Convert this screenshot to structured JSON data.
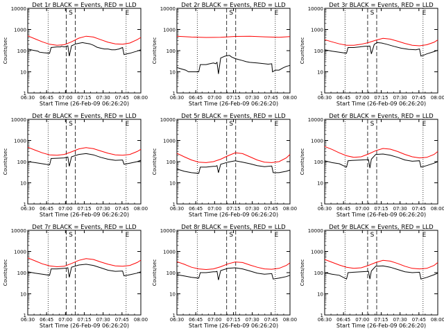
{
  "chart_data": [
    {
      "type": "line",
      "title": "Det 1r BLACK = Events, RED = LLD",
      "xlabel": "Start Time (26-Feb-09 06:26:20)",
      "ylabel": "Counts/sec",
      "yscale": "log",
      "ylim": [
        1,
        10000
      ],
      "xticks": [
        "06:30",
        "06:45",
        "07:00",
        "07:15",
        "07:30",
        "07:45",
        "08:00"
      ],
      "yticks": [
        "1",
        "10",
        "100",
        "1000",
        "10000"
      ],
      "markers": [
        "S",
        "E"
      ],
      "series": [
        {
          "color": "#000000",
          "x": [
            0,
            7,
            14,
            16,
            22,
            30,
            32,
            40,
            45,
            46,
            50,
            53,
            55,
            57,
            60,
            66,
            72,
            75,
            78,
            85,
            90,
            94,
            95,
            100,
            105,
            110,
            115,
            120,
            125,
            130,
            132,
            135,
            140,
            145,
            150,
            155
          ],
          "y": [
            120,
            105,
            95,
            85,
            80,
            75,
            140,
            150,
            150,
            160,
            150,
            160,
            170,
            55,
            170,
            210,
            230,
            240,
            230,
            210,
            180,
            150,
            145,
            130,
            120,
            120,
            110,
            110,
            120,
            140,
            65,
            70,
            75,
            85,
            95,
            110
          ]
        },
        {
          "color": "#ff0000",
          "x": [
            0,
            10,
            20,
            30,
            40,
            50,
            60,
            70,
            80,
            90,
            100,
            110,
            120,
            130,
            140,
            150,
            155
          ],
          "y": [
            500,
            360,
            260,
            200,
            180,
            190,
            260,
            390,
            480,
            440,
            330,
            250,
            210,
            200,
            230,
            330,
            420
          ]
        }
      ]
    },
    {
      "type": "line",
      "title": "Det 2r BLACK = Events, RED = LLD",
      "xlabel": "Start Time (26-Feb-09 06:26:20)",
      "ylabel": "Counts/sec",
      "yscale": "log",
      "ylim": [
        1,
        10000
      ],
      "xticks": [
        "06:30",
        "06:45",
        "07:00",
        "07:15",
        "07:30",
        "07:45",
        "08:00"
      ],
      "yticks": [
        "1",
        "10",
        "100",
        "1000",
        "10000"
      ],
      "markers": [
        "S",
        "E"
      ],
      "series": [
        {
          "color": "#000000",
          "x": [
            0,
            5,
            12,
            16,
            22,
            30,
            32,
            40,
            45,
            50,
            52,
            53,
            55,
            57,
            60,
            66,
            72,
            75,
            80,
            90,
            95,
            100,
            110,
            120,
            125,
            130,
            131,
            135,
            140,
            145,
            150,
            155
          ],
          "y": [
            16,
            14,
            12,
            10,
            10,
            10,
            22,
            22,
            24,
            26,
            25,
            24,
            28,
            8,
            45,
            55,
            60,
            50,
            42,
            34,
            30,
            28,
            26,
            24,
            23,
            24,
            10,
            12,
            12,
            15,
            18,
            20
          ]
        },
        {
          "color": "#ff0000",
          "x": [
            0,
            20,
            40,
            60,
            80,
            100,
            120,
            140,
            155
          ],
          "y": [
            480,
            440,
            420,
            430,
            470,
            480,
            450,
            430,
            460
          ]
        }
      ]
    },
    {
      "type": "line",
      "title": "Det 3r BLACK = Events, RED = LLD",
      "xlabel": "Start Time (26-Feb-09 06:26:20)",
      "ylabel": "Counts/sec",
      "yscale": "log",
      "ylim": [
        1,
        10000
      ],
      "xticks": [
        "06:30",
        "06:45",
        "07:00",
        "07:15",
        "07:30",
        "07:45",
        "08:00"
      ],
      "yticks": [
        "1",
        "10",
        "100",
        "1000",
        "10000"
      ],
      "markers": [
        "S",
        "E"
      ],
      "series": [
        {
          "color": "#000000",
          "x": [
            0,
            10,
            20,
            30,
            32,
            40,
            48,
            50,
            55,
            62,
            64,
            68,
            72,
            78,
            85,
            95,
            105,
            115,
            125,
            130,
            132,
            135,
            140,
            150,
            155
          ],
          "y": [
            110,
            95,
            85,
            75,
            140,
            140,
            150,
            155,
            160,
            165,
            70,
            200,
            240,
            230,
            200,
            160,
            130,
            115,
            110,
            120,
            55,
            60,
            70,
            90,
            105
          ]
        },
        {
          "color": "#ff0000",
          "x": [
            0,
            10,
            20,
            30,
            40,
            50,
            60,
            70,
            80,
            90,
            100,
            110,
            120,
            130,
            140,
            150,
            155
          ],
          "y": [
            330,
            260,
            210,
            180,
            180,
            200,
            240,
            310,
            380,
            350,
            280,
            220,
            180,
            170,
            190,
            250,
            320
          ]
        }
      ]
    },
    {
      "type": "line",
      "title": "Det 4r BLACK = Events, RED = LLD",
      "xlabel": "Start Time (26-Feb-09 06:26:20)",
      "ylabel": "Counts/sec",
      "yscale": "log",
      "ylim": [
        1,
        10000
      ],
      "xticks": [
        "06:30",
        "06:45",
        "07:00",
        "07:15",
        "07:30",
        "07:45",
        "08:00"
      ],
      "yticks": [
        "1",
        "10",
        "100",
        "1000",
        "10000"
      ],
      "markers": [
        "S",
        "E"
      ],
      "series": [
        {
          "color": "#000000",
          "x": [
            0,
            10,
            20,
            30,
            32,
            40,
            50,
            53,
            55,
            57,
            60,
            70,
            80,
            90,
            100,
            110,
            120,
            130,
            132,
            140,
            150,
            155
          ],
          "y": [
            100,
            90,
            80,
            70,
            140,
            145,
            150,
            160,
            165,
            60,
            170,
            220,
            240,
            210,
            160,
            130,
            115,
            120,
            75,
            85,
            100,
            115
          ]
        },
        {
          "color": "#ff0000",
          "x": [
            0,
            10,
            20,
            30,
            40,
            50,
            60,
            70,
            80,
            90,
            100,
            110,
            120,
            130,
            140,
            150,
            155
          ],
          "y": [
            480,
            350,
            260,
            210,
            200,
            220,
            290,
            400,
            460,
            410,
            320,
            250,
            210,
            200,
            220,
            300,
            380
          ]
        }
      ]
    },
    {
      "type": "line",
      "title": "Det 5r BLACK = Events, RED = LLD",
      "xlabel": "Start Time (26-Feb-09 06:26:20)",
      "ylabel": "Counts/sec",
      "yscale": "log",
      "ylim": [
        1,
        10000
      ],
      "xticks": [
        "06:30",
        "06:45",
        "07:00",
        "07:15",
        "07:30",
        "07:45",
        "08:00"
      ],
      "yticks": [
        "1",
        "10",
        "100",
        "1000",
        "10000"
      ],
      "markers": [
        "S",
        "E"
      ],
      "series": [
        {
          "color": "#000000",
          "x": [
            0,
            10,
            20,
            30,
            32,
            40,
            50,
            53,
            55,
            57,
            60,
            70,
            80,
            90,
            100,
            110,
            120,
            130,
            132,
            140,
            150,
            155
          ],
          "y": [
            45,
            35,
            30,
            28,
            55,
            55,
            60,
            60,
            65,
            30,
            75,
            95,
            110,
            95,
            80,
            65,
            58,
            62,
            30,
            30,
            35,
            40
          ]
        },
        {
          "color": "#ff0000",
          "x": [
            0,
            10,
            20,
            30,
            40,
            50,
            60,
            70,
            80,
            90,
            100,
            110,
            120,
            130,
            140,
            150,
            155
          ],
          "y": [
            250,
            170,
            120,
            95,
            90,
            100,
            130,
            190,
            260,
            240,
            170,
            120,
            95,
            90,
            100,
            150,
            220
          ]
        }
      ]
    },
    {
      "type": "line",
      "title": "Det 6r BLACK = Events, RED = LLD",
      "xlabel": "Start Time (26-Feb-09 06:26:20)",
      "ylabel": "Counts/sec",
      "yscale": "log",
      "ylim": [
        1,
        10000
      ],
      "xticks": [
        "06:30",
        "06:45",
        "07:00",
        "07:15",
        "07:30",
        "07:45",
        "08:00"
      ],
      "yticks": [
        "1",
        "10",
        "100",
        "1000",
        "10000"
      ],
      "markers": [
        "S",
        "E"
      ],
      "series": [
        {
          "color": "#000000",
          "x": [
            0,
            10,
            20,
            30,
            32,
            40,
            50,
            60,
            62,
            64,
            70,
            80,
            90,
            100,
            110,
            120,
            130,
            132,
            140,
            150,
            155
          ],
          "y": [
            110,
            90,
            80,
            55,
            110,
            115,
            120,
            125,
            50,
            130,
            220,
            230,
            200,
            160,
            120,
            105,
            110,
            55,
            65,
            85,
            100
          ]
        },
        {
          "color": "#ff0000",
          "x": [
            0,
            10,
            20,
            30,
            40,
            50,
            60,
            70,
            80,
            90,
            100,
            110,
            120,
            130,
            140,
            150,
            155
          ],
          "y": [
            520,
            380,
            260,
            190,
            160,
            170,
            230,
            330,
            420,
            390,
            300,
            220,
            170,
            150,
            160,
            220,
            300
          ]
        }
      ]
    },
    {
      "type": "line",
      "title": "Det 7r BLACK = Events, RED = LLD",
      "xlabel": "Start Time (26-Feb-09 06:26:20)",
      "ylabel": "Counts/sec",
      "yscale": "log",
      "ylim": [
        1,
        10000
      ],
      "xticks": [
        "06:30",
        "06:45",
        "07:00",
        "07:15",
        "07:30",
        "07:45",
        "08:00"
      ],
      "yticks": [
        "1",
        "10",
        "100",
        "1000",
        "10000"
      ],
      "markers": [
        "S",
        "E"
      ],
      "series": [
        {
          "color": "#000000",
          "x": [
            0,
            10,
            20,
            30,
            32,
            40,
            50,
            53,
            55,
            57,
            60,
            70,
            80,
            90,
            100,
            110,
            120,
            130,
            132,
            140,
            150,
            155
          ],
          "y": [
            110,
            95,
            85,
            75,
            150,
            150,
            160,
            165,
            170,
            60,
            180,
            230,
            250,
            220,
            170,
            130,
            115,
            120,
            70,
            80,
            95,
            110
          ]
        },
        {
          "color": "#ff0000",
          "x": [
            0,
            10,
            20,
            30,
            40,
            50,
            60,
            70,
            80,
            90,
            100,
            110,
            120,
            130,
            140,
            150,
            155
          ],
          "y": [
            500,
            360,
            260,
            210,
            190,
            200,
            270,
            380,
            460,
            420,
            320,
            250,
            210,
            200,
            220,
            300,
            390
          ]
        }
      ]
    },
    {
      "type": "line",
      "title": "Det 8r BLACK = Events, RED = LLD",
      "xlabel": "Start Time (26-Feb-09 06:26:20)",
      "ylabel": "Counts/sec",
      "yscale": "log",
      "ylim": [
        1,
        10000
      ],
      "xticks": [
        "06:30",
        "06:45",
        "07:00",
        "07:15",
        "07:30",
        "07:45",
        "08:00"
      ],
      "yticks": [
        "1",
        "10",
        "100",
        "1000",
        "10000"
      ],
      "markers": [
        "S",
        "E"
      ],
      "series": [
        {
          "color": "#000000",
          "x": [
            0,
            10,
            20,
            30,
            32,
            40,
            50,
            53,
            55,
            57,
            60,
            70,
            80,
            90,
            100,
            110,
            120,
            130,
            132,
            140,
            150,
            155
          ],
          "y": [
            80,
            70,
            60,
            55,
            100,
            100,
            110,
            110,
            115,
            45,
            125,
            160,
            170,
            150,
            120,
            95,
            85,
            90,
            50,
            55,
            65,
            75
          ]
        },
        {
          "color": "#ff0000",
          "x": [
            0,
            10,
            20,
            30,
            40,
            50,
            60,
            70,
            80,
            90,
            100,
            110,
            120,
            130,
            140,
            150,
            155
          ],
          "y": [
            330,
            250,
            180,
            150,
            140,
            150,
            190,
            260,
            320,
            300,
            230,
            180,
            150,
            145,
            160,
            220,
            290
          ]
        }
      ]
    },
    {
      "type": "line",
      "title": "Det 9r BLACK = Events, RED = LLD",
      "xlabel": "Start Time (26-Feb-09 06:26:20)",
      "ylabel": "Counts/sec",
      "yscale": "log",
      "ylim": [
        1,
        10000
      ],
      "xticks": [
        "06:30",
        "06:45",
        "07:00",
        "07:15",
        "07:30",
        "07:45",
        "08:00"
      ],
      "yticks": [
        "1",
        "10",
        "100",
        "1000",
        "10000"
      ],
      "markers": [
        "S",
        "E"
      ],
      "series": [
        {
          "color": "#000000",
          "x": [
            0,
            10,
            20,
            30,
            32,
            40,
            50,
            60,
            62,
            64,
            70,
            80,
            90,
            100,
            110,
            120,
            130,
            132,
            140,
            150,
            155
          ],
          "y": [
            100,
            85,
            75,
            50,
            100,
            105,
            110,
            115,
            50,
            120,
            200,
            210,
            180,
            140,
            110,
            100,
            105,
            50,
            60,
            80,
            95
          ]
        },
        {
          "color": "#ff0000",
          "x": [
            0,
            10,
            20,
            30,
            40,
            50,
            60,
            70,
            80,
            90,
            100,
            110,
            120,
            130,
            140,
            150,
            155
          ],
          "y": [
            420,
            310,
            230,
            180,
            160,
            170,
            220,
            300,
            380,
            350,
            270,
            200,
            160,
            150,
            160,
            220,
            300
          ]
        }
      ]
    }
  ]
}
